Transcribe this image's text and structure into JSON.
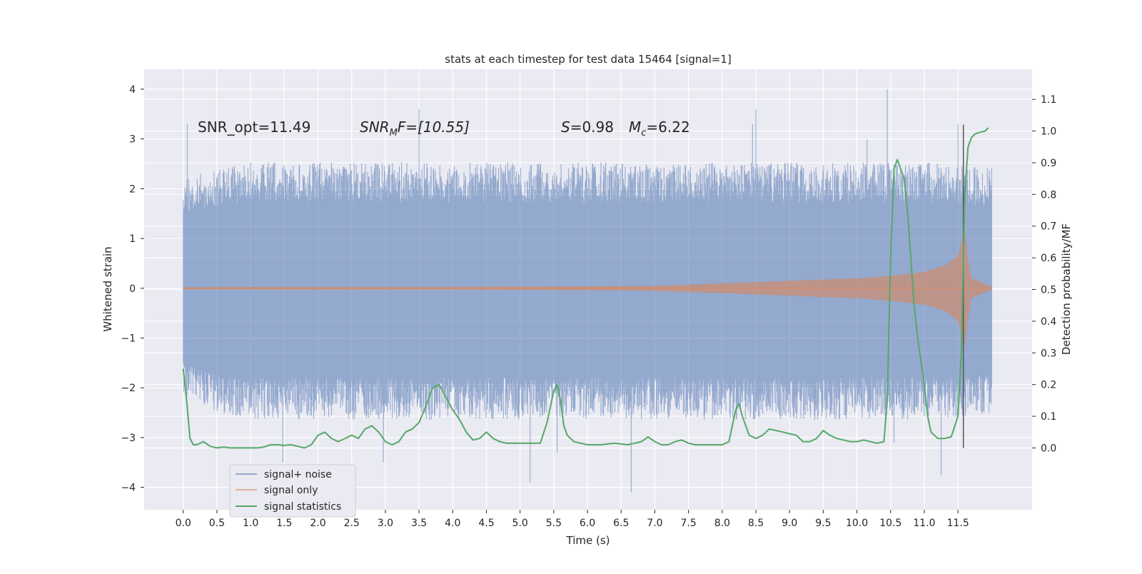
{
  "chart_data": {
    "type": "line",
    "title": "stats at each timestep for test data 15464 [signal=1]",
    "xlabel": "Time (s)",
    "ylabel": "Whitened strain",
    "ylabel_right": "Detection probability/MF",
    "xlim": [
      -0.58,
      12.6
    ],
    "ylim": [
      -4.45,
      4.4
    ],
    "y2lim": [
      -0.195,
      1.195
    ],
    "x_ticks": [
      0.0,
      0.5,
      1.0,
      1.5,
      2.0,
      2.5,
      3.0,
      3.5,
      4.0,
      4.5,
      5.0,
      5.5,
      6.0,
      6.5,
      7.0,
      7.5,
      8.0,
      8.5,
      9.0,
      9.5,
      10.0,
      10.5,
      11.0,
      11.5
    ],
    "x_tick_labels": [
      "0.0",
      "0.5",
      "1.0",
      "1.5",
      "2.0",
      "2.5",
      "3.0",
      "3.5",
      "4.0",
      "4.5",
      "5.0",
      "5.5",
      "6.0",
      "6.5",
      "7.0",
      "7.5",
      "8.0",
      "8.5",
      "9.0",
      "9.5",
      "10.0",
      "10.5",
      "11.0",
      "11.5"
    ],
    "y_ticks": [
      -4,
      -3,
      -2,
      -1,
      0,
      1,
      2,
      3,
      4
    ],
    "y_tick_labels": [
      "−4",
      "−3",
      "−2",
      "−1",
      "0",
      "1",
      "2",
      "3",
      "4"
    ],
    "y2_ticks": [
      0.0,
      0.1,
      0.2,
      0.3,
      0.4,
      0.5,
      0.6,
      0.7,
      0.8,
      0.9,
      1.0,
      1.1
    ],
    "y2_tick_labels": [
      "0.0",
      "0.1",
      "0.2",
      "0.3",
      "0.4",
      "0.5",
      "0.6",
      "0.7",
      "0.8",
      "0.9",
      "1.0",
      "1.1"
    ],
    "grid": true,
    "legend_position": "bottom-left",
    "annotations": {
      "snr_opt": "SNR_opt=11.49",
      "snr_mf_main": "SNR",
      "snr_mf_sub": "M",
      "snr_mf_rest": "F=[10.55]",
      "overlap_symbol": "S",
      "overlap_value": "=0.98",
      "chirp_mass_symbol": "M",
      "chirp_mass_sub": "c",
      "chirp_mass_value": "=6.22"
    },
    "marker_line_x": 11.58,
    "series": [
      {
        "name": "signal+ noise",
        "color": "#4c72b0",
        "x_range": [
          0.0,
          12.0
        ],
        "envelope_upper": [
          [
            0.0,
            2.0
          ],
          [
            0.5,
            2.2
          ],
          [
            1.0,
            2.3
          ],
          [
            2.0,
            2.3
          ],
          [
            3.0,
            2.3
          ],
          [
            4.0,
            2.3
          ],
          [
            5.0,
            2.3
          ],
          [
            6.0,
            2.3
          ],
          [
            7.0,
            2.3
          ],
          [
            8.0,
            2.3
          ],
          [
            9.0,
            2.3
          ],
          [
            10.0,
            2.3
          ],
          [
            11.0,
            2.3
          ],
          [
            12.0,
            2.2
          ]
        ],
        "envelope_lower": [
          [
            0.0,
            -2.0
          ],
          [
            0.5,
            -2.3
          ],
          [
            1.0,
            -2.4
          ],
          [
            2.0,
            -2.4
          ],
          [
            3.0,
            -2.4
          ],
          [
            4.0,
            -2.4
          ],
          [
            5.0,
            -2.4
          ],
          [
            6.0,
            -2.4
          ],
          [
            7.0,
            -2.4
          ],
          [
            8.0,
            -2.4
          ],
          [
            9.0,
            -2.4
          ],
          [
            10.0,
            -2.4
          ],
          [
            11.0,
            -2.4
          ],
          [
            12.0,
            -2.3
          ]
        ],
        "spikes": [
          [
            0.06,
            3.3
          ],
          [
            1.48,
            -3.5
          ],
          [
            2.97,
            -3.5
          ],
          [
            3.5,
            3.6
          ],
          [
            5.15,
            -3.9
          ],
          [
            5.55,
            -3.3
          ],
          [
            6.65,
            -4.1
          ],
          [
            8.45,
            3.3
          ],
          [
            8.5,
            3.6
          ],
          [
            10.15,
            3.0
          ],
          [
            10.45,
            4.0
          ],
          [
            10.55,
            -3.1
          ],
          [
            11.25,
            -3.75
          ],
          [
            11.5,
            3.3
          ]
        ]
      },
      {
        "name": "signal only",
        "color": "#dd8452",
        "envelope": [
          [
            0.0,
            0.02
          ],
          [
            2.0,
            0.03
          ],
          [
            4.0,
            0.03
          ],
          [
            6.0,
            0.04
          ],
          [
            7.0,
            0.05
          ],
          [
            8.0,
            0.1
          ],
          [
            9.0,
            0.15
          ],
          [
            10.0,
            0.2
          ],
          [
            10.5,
            0.25
          ],
          [
            11.0,
            0.33
          ],
          [
            11.3,
            0.45
          ],
          [
            11.5,
            0.65
          ],
          [
            11.6,
            1.2
          ],
          [
            11.65,
            0.6
          ],
          [
            11.7,
            0.2
          ],
          [
            12.0,
            0.03
          ]
        ]
      },
      {
        "name": "signal statistics",
        "color": "#55a868",
        "x": [
          0.0,
          0.05,
          0.1,
          0.15,
          0.2,
          0.25,
          0.3,
          0.4,
          0.5,
          0.6,
          0.7,
          0.8,
          0.9,
          1.0,
          1.1,
          1.2,
          1.3,
          1.4,
          1.5,
          1.6,
          1.7,
          1.8,
          1.9,
          2.0,
          2.1,
          2.2,
          2.3,
          2.4,
          2.5,
          2.6,
          2.7,
          2.8,
          2.9,
          3.0,
          3.1,
          3.2,
          3.3,
          3.4,
          3.5,
          3.6,
          3.7,
          3.8,
          3.9,
          4.0,
          4.1,
          4.2,
          4.3,
          4.4,
          4.5,
          4.6,
          4.7,
          4.8,
          4.9,
          5.0,
          5.1,
          5.2,
          5.3,
          5.4,
          5.5,
          5.55,
          5.6,
          5.65,
          5.7,
          5.8,
          5.9,
          6.0,
          6.2,
          6.4,
          6.6,
          6.8,
          6.9,
          7.0,
          7.1,
          7.2,
          7.3,
          7.4,
          7.5,
          7.6,
          7.8,
          8.0,
          8.1,
          8.2,
          8.25,
          8.3,
          8.4,
          8.5,
          8.6,
          8.7,
          8.8,
          8.9,
          9.0,
          9.1,
          9.2,
          9.3,
          9.4,
          9.5,
          9.6,
          9.7,
          9.8,
          9.9,
          10.0,
          10.1,
          10.2,
          10.3,
          10.4,
          10.45,
          10.5,
          10.55,
          10.6,
          10.65,
          10.7,
          10.75,
          10.8,
          10.85,
          10.9,
          11.0,
          11.05,
          11.1,
          11.15,
          11.2,
          11.3,
          11.4,
          11.5,
          11.55,
          11.6,
          11.65,
          11.7,
          11.75,
          11.8,
          11.9,
          11.95
        ],
        "y": [
          0.25,
          0.15,
          0.03,
          0.01,
          0.01,
          0.015,
          0.02,
          0.005,
          0.0,
          0.003,
          0.0,
          0.0,
          0.0,
          0.0,
          0.0,
          0.003,
          0.01,
          0.01,
          0.008,
          0.01,
          0.005,
          0.0,
          0.01,
          0.04,
          0.05,
          0.03,
          0.02,
          0.03,
          0.04,
          0.03,
          0.06,
          0.07,
          0.05,
          0.02,
          0.01,
          0.02,
          0.05,
          0.06,
          0.08,
          0.13,
          0.19,
          0.2,
          0.16,
          0.12,
          0.09,
          0.05,
          0.025,
          0.03,
          0.05,
          0.03,
          0.02,
          0.015,
          0.015,
          0.015,
          0.015,
          0.015,
          0.015,
          0.08,
          0.18,
          0.2,
          0.15,
          0.07,
          0.04,
          0.02,
          0.015,
          0.01,
          0.01,
          0.015,
          0.01,
          0.02,
          0.035,
          0.02,
          0.01,
          0.01,
          0.02,
          0.025,
          0.015,
          0.01,
          0.01,
          0.01,
          0.02,
          0.12,
          0.14,
          0.1,
          0.04,
          0.03,
          0.04,
          0.06,
          0.055,
          0.05,
          0.045,
          0.04,
          0.02,
          0.02,
          0.03,
          0.055,
          0.04,
          0.03,
          0.025,
          0.02,
          0.02,
          0.025,
          0.02,
          0.015,
          0.02,
          0.15,
          0.6,
          0.88,
          0.91,
          0.88,
          0.85,
          0.75,
          0.6,
          0.45,
          0.35,
          0.2,
          0.1,
          0.05,
          0.04,
          0.03,
          0.03,
          0.035,
          0.1,
          0.3,
          0.8,
          0.95,
          0.98,
          0.99,
          0.995,
          1.0,
          1.01
        ]
      }
    ]
  }
}
